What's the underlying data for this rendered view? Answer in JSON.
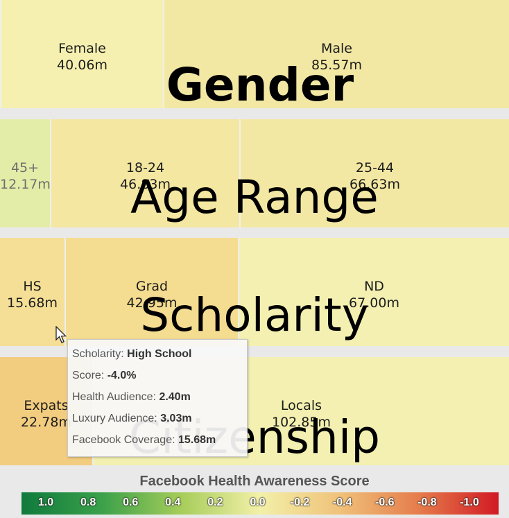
{
  "chart_data": {
    "type": "treemap",
    "rows": [
      {
        "title": "Gender",
        "cells": [
          {
            "label": "Female",
            "value": "40.06m",
            "color": "#f5f0b0"
          },
          {
            "label": "Male",
            "value": "85.57m",
            "color": "#f3e8a3"
          }
        ]
      },
      {
        "title": "Age Range",
        "cells": [
          {
            "label": "45+",
            "value": "12.17m",
            "color": "#e4eda8"
          },
          {
            "label": "18-24",
            "value": "46.83m",
            "color": "#f3e7a1"
          },
          {
            "label": "25-44",
            "value": "66.63m",
            "color": "#f3e8a3"
          }
        ]
      },
      {
        "title": "Scholarity",
        "cells": [
          {
            "label": "HS",
            "value": "15.68m",
            "color": "#f5df96"
          },
          {
            "label": "Grad",
            "value": "42.95m",
            "color": "#f4dc90"
          },
          {
            "label": "ND",
            "value": "67.00m",
            "color": "#f3f0b2"
          }
        ]
      },
      {
        "title": "Citizenship",
        "cells": [
          {
            "label": "Expats",
            "value": "22.78m",
            "color": "#f2cd7f"
          },
          {
            "label": "Locals",
            "value": "102.85m",
            "color": "#f3f0b1"
          }
        ]
      }
    ],
    "tooltip": {
      "lines": [
        {
          "key": "Scholarity:",
          "value": "High School"
        },
        {
          "key": "Score:",
          "value": "-4.0%"
        },
        {
          "key": "Health Audience:",
          "value": "2.40m"
        },
        {
          "key": "Luxury Audience:",
          "value": "3.03m"
        },
        {
          "key": "Facebook Coverage:",
          "value": "15.68m"
        }
      ]
    },
    "legend": {
      "title": "Facebook Health Awareness Score",
      "ticks": [
        "1.0",
        "0.8",
        "0.6",
        "0.4",
        "0.2",
        "0.0",
        "-0.2",
        "-0.4",
        "-0.6",
        "-0.8",
        "-1.0"
      ],
      "colors": [
        "#0f7a3c",
        "#3aa04a",
        "#a6cd5a",
        "#f3f0a8",
        "#f0c27a",
        "#e57c4b",
        "#d11a24"
      ]
    }
  }
}
